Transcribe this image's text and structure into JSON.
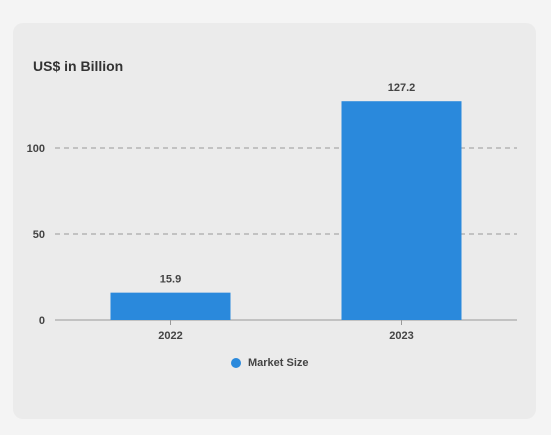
{
  "chart_data": {
    "type": "bar",
    "title": "US$ in Billion",
    "categories": [
      "2022",
      "2023"
    ],
    "series": [
      {
        "name": "Market Size",
        "values": [
          15.9,
          127.2
        ]
      }
    ],
    "data_labels": [
      "15.9",
      "127.2"
    ],
    "ylim": [
      0,
      150
    ],
    "yticks": [
      0,
      50,
      100
    ],
    "grid": "dashed-horizontal",
    "legend": "bottom-center"
  },
  "colors": {
    "bar": "#2a89dc",
    "card": "#ebebeb"
  }
}
